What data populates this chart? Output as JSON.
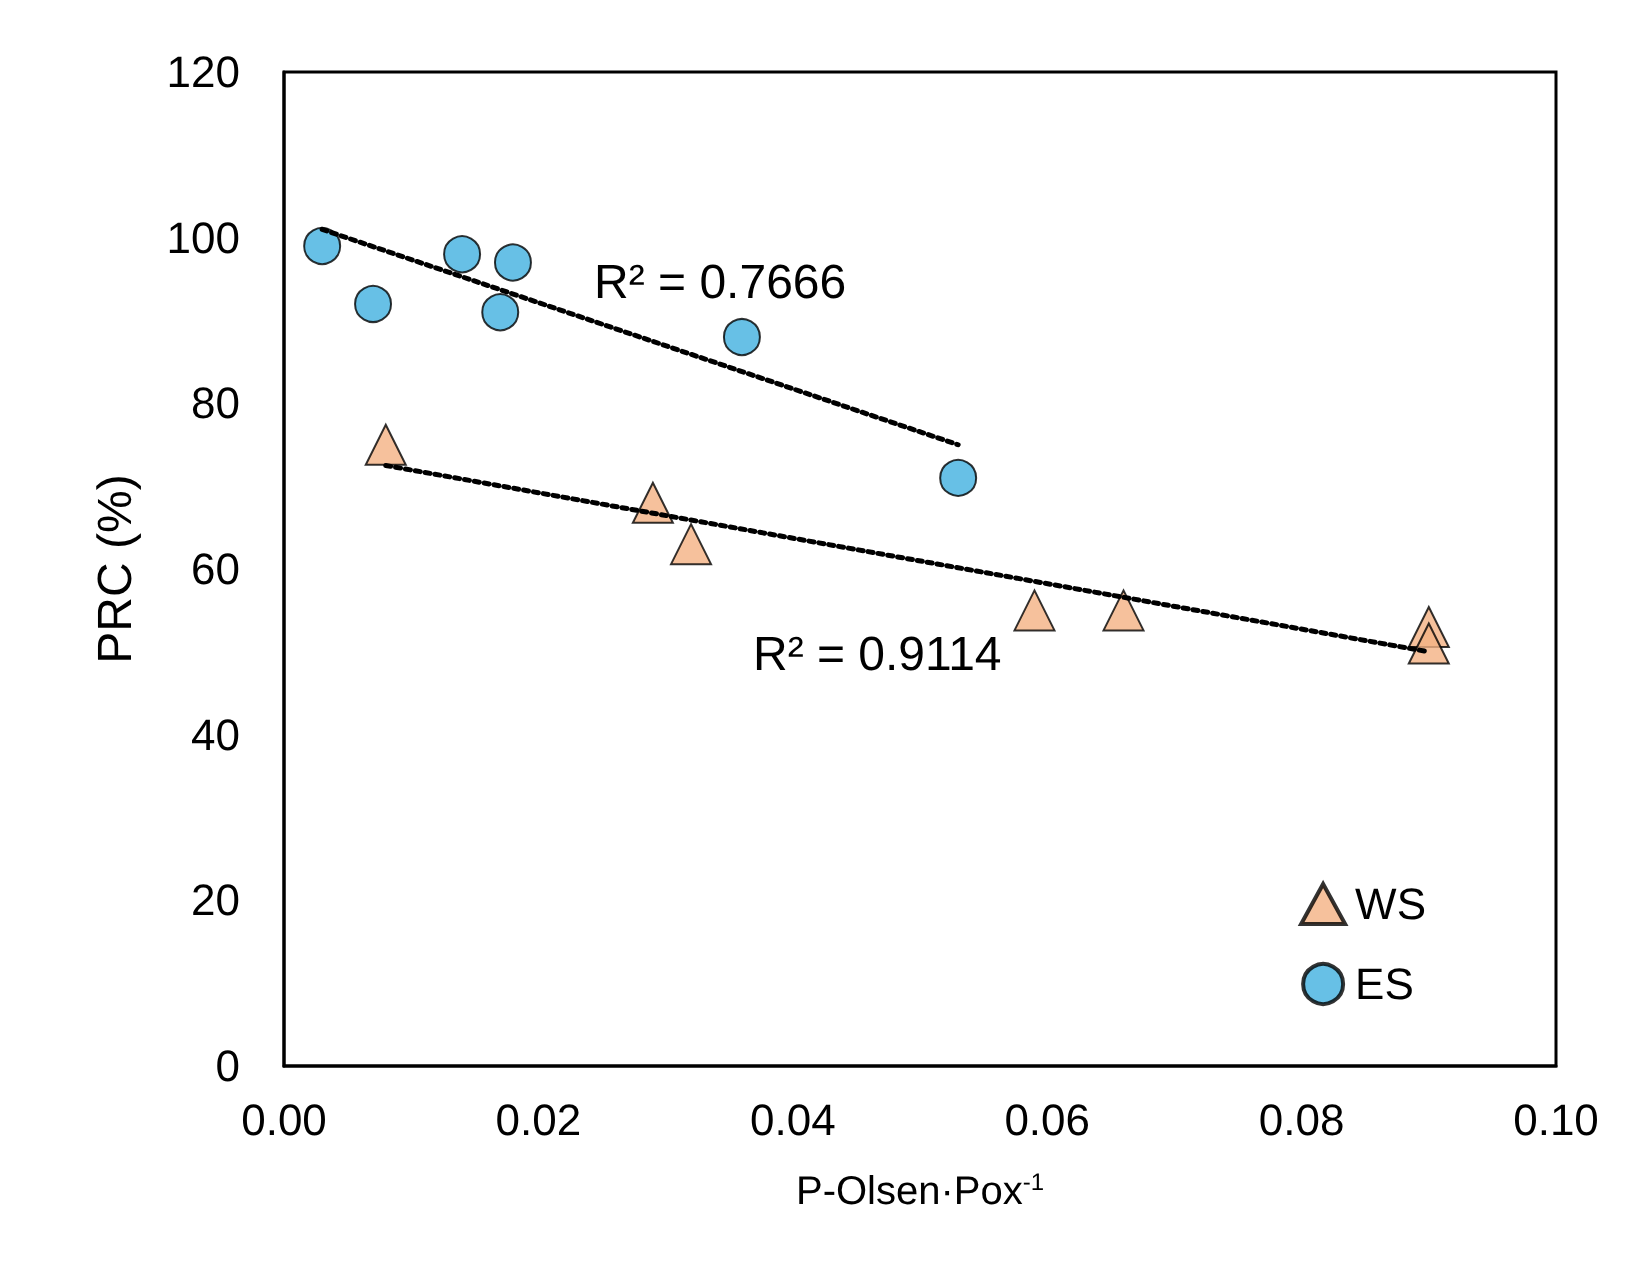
{
  "chart_data": {
    "type": "scatter",
    "xlabel": "P-Olsen·Pox$^{-1}$",
    "ylabel": "PRC (%)",
    "xlim": [
      0,
      0.1
    ],
    "xticks": [
      {
        "value": 0,
        "label": "0.00"
      },
      {
        "value": 0.02,
        "label": "0.02"
      },
      {
        "value": 0.04,
        "label": "0.04"
      },
      {
        "value": 0.06,
        "label": "0.06"
      },
      {
        "value": 0.08,
        "label": "0.08"
      },
      {
        "value": 0.1,
        "label": "0.10"
      }
    ],
    "ylim": [
      0,
      120
    ],
    "yticks": [
      0,
      20,
      40,
      60,
      80,
      100,
      120
    ],
    "grid": false,
    "legend": "bottom right",
    "series": [
      {
        "name": "WS",
        "color": "#f4b183",
        "marker": "triangle",
        "x": [
          0.008,
          0.029,
          0.032,
          0.059,
          0.066,
          0.09,
          0.09
        ],
        "values": [
          75,
          68,
          63,
          55,
          55,
          53,
          51
        ]
      },
      {
        "name": "ES",
        "color": "#41b0e0",
        "marker": "circle",
        "x": [
          0.003,
          0.007,
          0.014,
          0.018,
          0.017,
          0.036,
          0.053
        ],
        "values": [
          99,
          92,
          98,
          97,
          91,
          88,
          71
        ]
      },
      {
        "type": "line",
        "color": "#000000",
        "line_style": "dotted",
        "marker": "none",
        "x": [
          0.003,
          0.053
        ],
        "values": [
          101,
          75
        ]
      },
      {
        "type": "line",
        "color": "#000000",
        "line_style": "dotted",
        "marker": "none",
        "x": [
          0.008,
          0.09
        ],
        "values": [
          72.5,
          50
        ]
      }
    ],
    "annotations": [
      "R² = 0.7666",
      "R² = 0.9114"
    ]
  }
}
